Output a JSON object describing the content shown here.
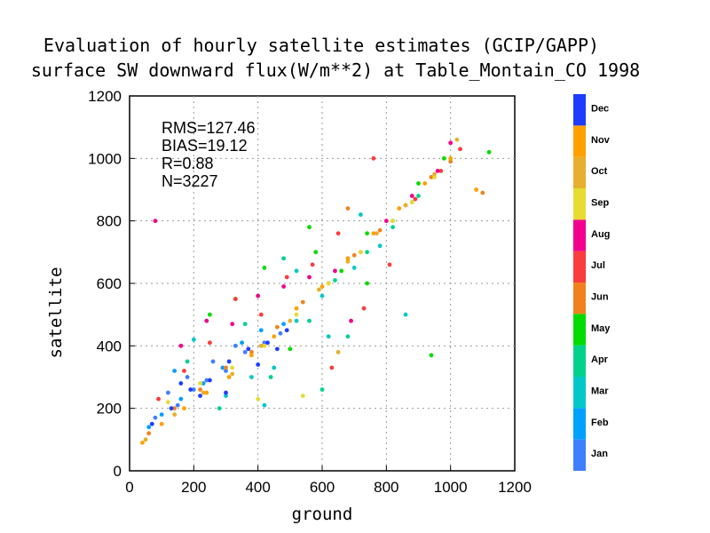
{
  "chart_data": {
    "type": "scatter",
    "title": "Evaluation of hourly satellite estimates (GCIP/GAPP)",
    "subtitle": "surface SW downward flux(W/m**2) at Table_Montain_CO 1998",
    "xlabel": "ground",
    "ylabel": "satellite",
    "xlim": [
      0,
      1200
    ],
    "ylim": [
      0,
      1200
    ],
    "xticks": [
      "0",
      "200",
      "400",
      "600",
      "800",
      "1000",
      "1200"
    ],
    "yticks": [
      "0",
      "200",
      "400",
      "600",
      "800",
      "1000",
      "1200"
    ],
    "grid": true,
    "stats": {
      "rms": "RMS=127.46",
      "bias": "BIAS=19.12",
      "r": "R=0.88",
      "n": "N=3227"
    },
    "colorbar": [
      {
        "month": "Jan",
        "color": "#3f7fff"
      },
      {
        "month": "Feb",
        "color": "#00a0ff"
      },
      {
        "month": "Mar",
        "color": "#00c8c8"
      },
      {
        "month": "Apr",
        "color": "#00d28c"
      },
      {
        "month": "May",
        "color": "#00dc00"
      },
      {
        "month": "Jun",
        "color": "#f0821e"
      },
      {
        "month": "Jul",
        "color": "#fa3c3c"
      },
      {
        "month": "Aug",
        "color": "#f0008c"
      },
      {
        "month": "Sep",
        "color": "#e6dc32"
      },
      {
        "month": "Oct",
        "color": "#e6af2d"
      },
      {
        "month": "Nov",
        "color": "#ffa000"
      },
      {
        "month": "Dec",
        "color": "#1e3cff"
      }
    ],
    "series": [
      {
        "month": "Jan",
        "points": [
          [
            120,
            250
          ],
          [
            180,
            300
          ],
          [
            240,
            290
          ],
          [
            300,
            320
          ],
          [
            360,
            380
          ],
          [
            420,
            410
          ],
          [
            80,
            170
          ],
          [
            150,
            210
          ],
          [
            200,
            260
          ],
          [
            260,
            350
          ],
          [
            330,
            400
          ],
          [
            470,
            440
          ]
        ]
      },
      {
        "month": "Feb",
        "points": [
          [
            100,
            180
          ],
          [
            160,
            230
          ],
          [
            230,
            280
          ],
          [
            290,
            330
          ],
          [
            350,
            410
          ],
          [
            410,
            450
          ],
          [
            480,
            470
          ],
          [
            140,
            320
          ],
          [
            60,
            140
          ]
        ]
      },
      {
        "month": "Mar",
        "points": [
          [
            200,
            420
          ],
          [
            300,
            240
          ],
          [
            380,
            300
          ],
          [
            450,
            330
          ],
          [
            520,
            480
          ],
          [
            600,
            560
          ],
          [
            700,
            650
          ],
          [
            780,
            720
          ],
          [
            880,
            860
          ],
          [
            620,
            430
          ],
          [
            720,
            820
          ],
          [
            520,
            640
          ],
          [
            420,
            210
          ],
          [
            860,
            500
          ]
        ]
      },
      {
        "month": "Apr",
        "points": [
          [
            180,
            350
          ],
          [
            280,
            200
          ],
          [
            360,
            470
          ],
          [
            440,
            300
          ],
          [
            560,
            480
          ],
          [
            640,
            610
          ],
          [
            740,
            700
          ],
          [
            820,
            780
          ],
          [
            900,
            880
          ],
          [
            680,
            430
          ],
          [
            480,
            680
          ],
          [
            600,
            260
          ]
        ]
      },
      {
        "month": "May",
        "points": [
          [
            250,
            500
          ],
          [
            330,
            550
          ],
          [
            420,
            650
          ],
          [
            500,
            390
          ],
          [
            580,
            700
          ],
          [
            660,
            640
          ],
          [
            740,
            760
          ],
          [
            820,
            800
          ],
          [
            900,
            920
          ],
          [
            980,
            1000
          ],
          [
            1120,
            1020
          ],
          [
            940,
            370
          ],
          [
            740,
            600
          ],
          [
            560,
            780
          ]
        ]
      },
      {
        "month": "Jun",
        "points": [
          [
            60,
            120
          ],
          [
            140,
            200
          ],
          [
            220,
            260
          ],
          [
            300,
            330
          ],
          [
            380,
            380
          ],
          [
            460,
            460
          ],
          [
            540,
            540
          ],
          [
            620,
            600
          ],
          [
            700,
            690
          ],
          [
            780,
            770
          ],
          [
            860,
            850
          ],
          [
            940,
            940
          ],
          [
            1000,
            990
          ],
          [
            1100,
            890
          ],
          [
            680,
            840
          ]
        ]
      },
      {
        "month": "Jul",
        "points": [
          [
            90,
            230
          ],
          [
            170,
            320
          ],
          [
            250,
            410
          ],
          [
            330,
            550
          ],
          [
            410,
            500
          ],
          [
            490,
            620
          ],
          [
            570,
            660
          ],
          [
            650,
            760
          ],
          [
            730,
            520
          ],
          [
            810,
            660
          ],
          [
            890,
            870
          ],
          [
            970,
            960
          ],
          [
            1030,
            1030
          ],
          [
            760,
            1000
          ],
          [
            630,
            330
          ]
        ]
      },
      {
        "month": "Aug",
        "points": [
          [
            80,
            800
          ],
          [
            160,
            400
          ],
          [
            240,
            480
          ],
          [
            320,
            470
          ],
          [
            400,
            560
          ],
          [
            480,
            590
          ],
          [
            560,
            620
          ],
          [
            640,
            640
          ],
          [
            720,
            700
          ],
          [
            800,
            800
          ],
          [
            880,
            880
          ],
          [
            960,
            960
          ],
          [
            1000,
            1050
          ],
          [
            690,
            480
          ]
        ]
      },
      {
        "month": "Sep",
        "points": [
          [
            120,
            220
          ],
          [
            220,
            280
          ],
          [
            320,
            330
          ],
          [
            420,
            400
          ],
          [
            520,
            500
          ],
          [
            620,
            600
          ],
          [
            720,
            700
          ],
          [
            820,
            800
          ],
          [
            880,
            860
          ],
          [
            950,
            940
          ],
          [
            540,
            240
          ],
          [
            400,
            230
          ]
        ]
      },
      {
        "month": "Oct",
        "points": [
          [
            50,
            100
          ],
          [
            140,
            180
          ],
          [
            230,
            250
          ],
          [
            320,
            310
          ],
          [
            410,
            400
          ],
          [
            500,
            480
          ],
          [
            590,
            580
          ],
          [
            680,
            670
          ],
          [
            770,
            760
          ],
          [
            860,
            850
          ],
          [
            950,
            950
          ],
          [
            1020,
            1060
          ],
          [
            650,
            380
          ]
        ]
      },
      {
        "month": "Nov",
        "points": [
          [
            40,
            90
          ],
          [
            100,
            150
          ],
          [
            170,
            200
          ],
          [
            240,
            250
          ],
          [
            310,
            300
          ],
          [
            380,
            370
          ],
          [
            450,
            430
          ],
          [
            520,
            520
          ],
          [
            600,
            590
          ],
          [
            680,
            680
          ],
          [
            760,
            760
          ],
          [
            840,
            840
          ],
          [
            920,
            920
          ],
          [
            1000,
            1000
          ],
          [
            1080,
            900
          ]
        ]
      },
      {
        "month": "Dec",
        "points": [
          [
            70,
            150
          ],
          [
            130,
            200
          ],
          [
            190,
            260
          ],
          [
            250,
            290
          ],
          [
            310,
            350
          ],
          [
            370,
            390
          ],
          [
            430,
            410
          ],
          [
            490,
            450
          ],
          [
            300,
            250
          ],
          [
            220,
            240
          ],
          [
            160,
            280
          ],
          [
            400,
            340
          ],
          [
            460,
            390
          ]
        ]
      }
    ]
  }
}
